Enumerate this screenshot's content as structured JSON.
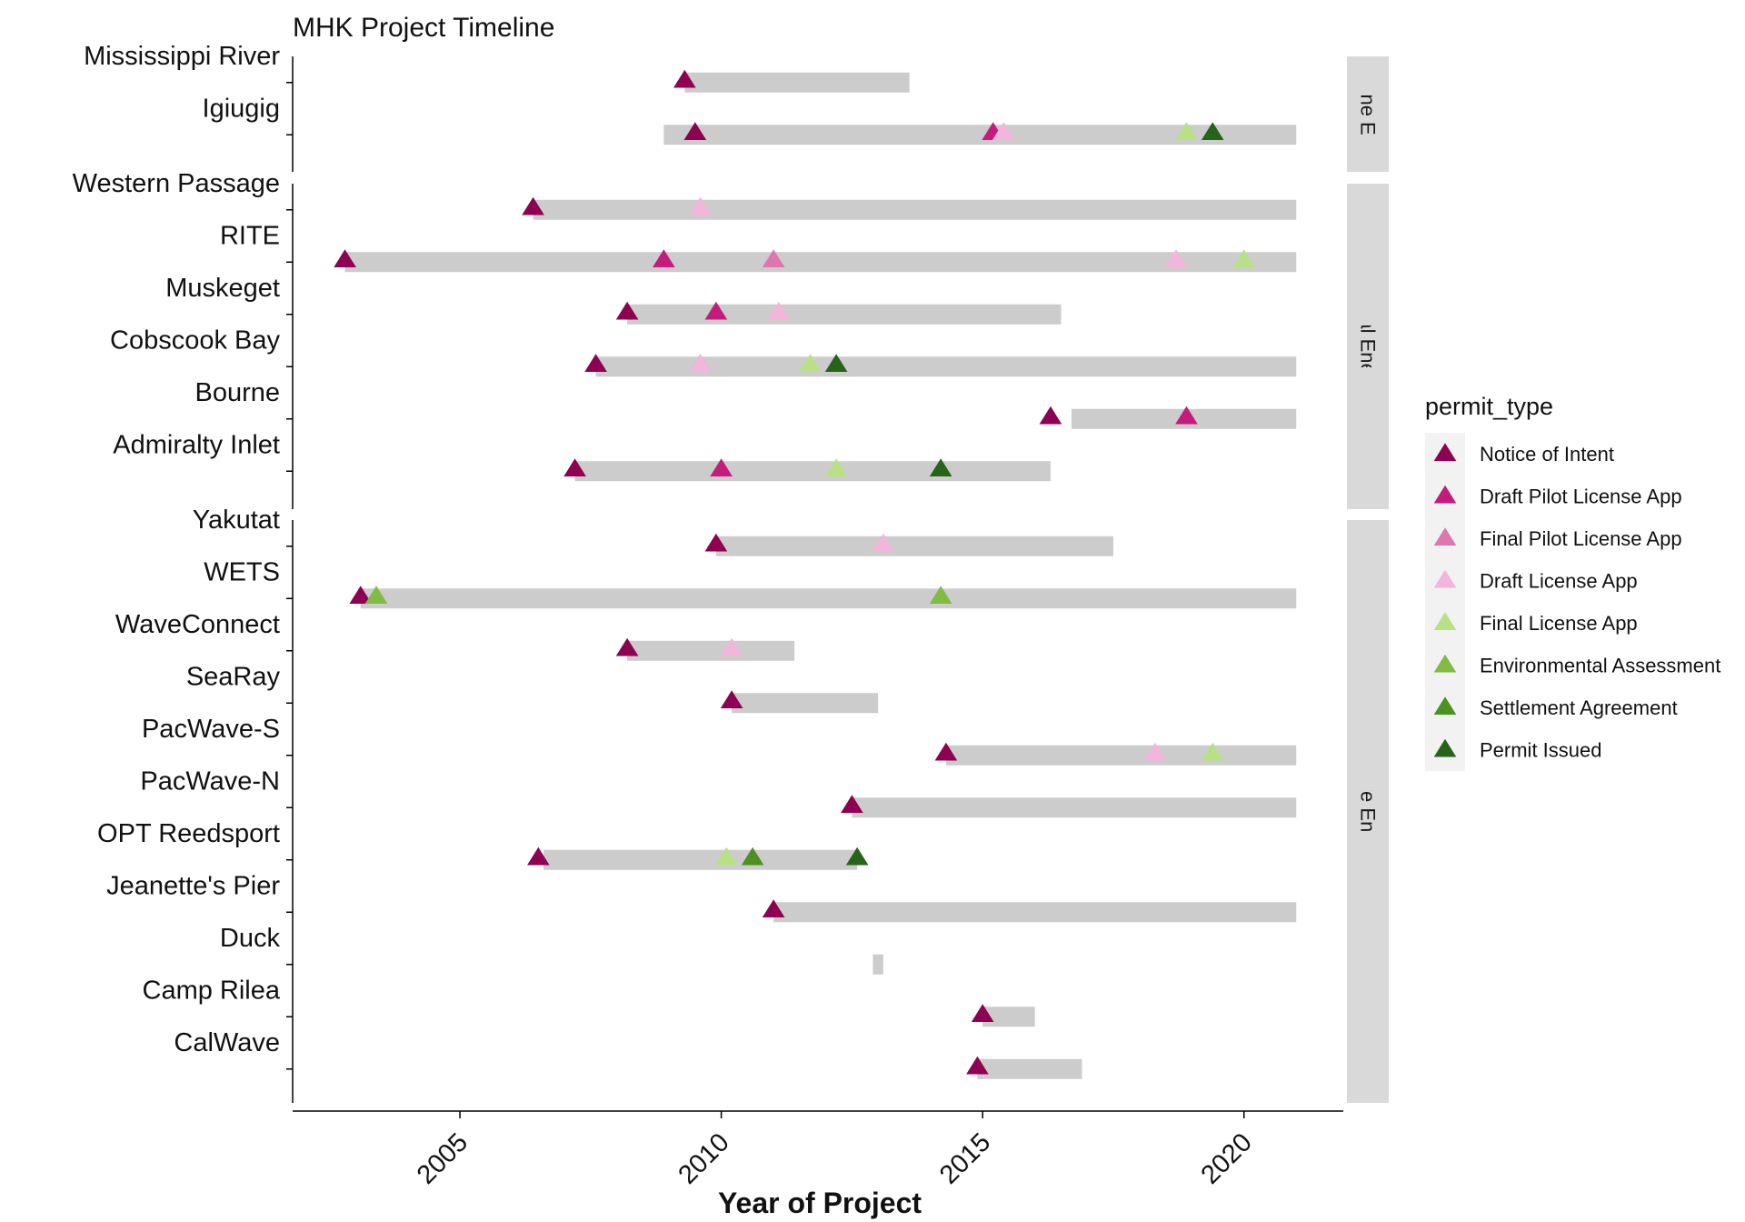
{
  "chart_data": {
    "type": "timeline",
    "title": "MHK Project Timeline",
    "xlabel": "Year of Project",
    "xlim": [
      2001.8,
      2021.9
    ],
    "xticks": [
      2005,
      2010,
      2015,
      2020
    ],
    "legend": {
      "title": "permit_type",
      "placement": "right",
      "entries": [
        {
          "name": "Notice of Intent",
          "color": "#8e0152"
        },
        {
          "name": "Draft Pilot License App",
          "color": "#c51b7d"
        },
        {
          "name": "Final Pilot License App",
          "color": "#de77ae"
        },
        {
          "name": "Draft License App",
          "color": "#f1b6da"
        },
        {
          "name": "Final License App",
          "color": "#b8e186"
        },
        {
          "name": "Environmental Assessment",
          "color": "#7fbc41"
        },
        {
          "name": "Settlement Agreement",
          "color": "#4d9221"
        },
        {
          "name": "Permit Issued",
          "color": "#276419"
        }
      ]
    },
    "bar_color": "#cccccc",
    "facets": [
      {
        "strip_label": "Riverine Energy",
        "projects": [
          {
            "name": "Mississippi River",
            "start": 2009.3,
            "end": 2013.6,
            "permits": [
              {
                "type": "Notice of Intent",
                "year": 2009.3
              }
            ]
          },
          {
            "name": "Igiugig",
            "start": 2008.9,
            "end": 2021.0,
            "permits": [
              {
                "type": "Notice of Intent",
                "year": 2009.5
              },
              {
                "type": "Draft Pilot License App",
                "year": 2015.2
              },
              {
                "type": "Draft License App",
                "year": 2015.4
              },
              {
                "type": "Final License App",
                "year": 2018.9
              },
              {
                "type": "Permit Issued",
                "year": 2019.4
              }
            ]
          }
        ]
      },
      {
        "strip_label": "Tidal Energy",
        "projects": [
          {
            "name": "Western Passage",
            "start": 2006.4,
            "end": 2021.0,
            "permits": [
              {
                "type": "Notice of Intent",
                "year": 2006.4
              },
              {
                "type": "Draft License App",
                "year": 2009.6
              }
            ]
          },
          {
            "name": "RITE",
            "start": 2002.8,
            "end": 2021.0,
            "permits": [
              {
                "type": "Notice of Intent",
                "year": 2002.8
              },
              {
                "type": "Draft Pilot License App",
                "year": 2008.9
              },
              {
                "type": "Final Pilot License App",
                "year": 2011.0
              },
              {
                "type": "Draft License App",
                "year": 2018.7
              },
              {
                "type": "Final License App",
                "year": 2020.0
              }
            ]
          },
          {
            "name": "Muskeget",
            "start": 2008.2,
            "end": 2016.5,
            "permits": [
              {
                "type": "Notice of Intent",
                "year": 2008.2
              },
              {
                "type": "Draft Pilot License App",
                "year": 2009.9
              },
              {
                "type": "Draft License App",
                "year": 2011.1
              }
            ]
          },
          {
            "name": "Cobscook Bay",
            "start": 2007.6,
            "end": 2021.0,
            "permits": [
              {
                "type": "Notice of Intent",
                "year": 2007.6
              },
              {
                "type": "Final Pilot License App",
                "year": 2009.6
              },
              {
                "type": "Draft License App",
                "year": 2009.6
              },
              {
                "type": "Final License App",
                "year": 2011.7
              },
              {
                "type": "Permit Issued",
                "year": 2012.2
              }
            ]
          },
          {
            "name": "Bourne",
            "start": 2016.7,
            "end": 2021.0,
            "permits": [
              {
                "type": "Notice of Intent",
                "year": 2016.3
              },
              {
                "type": "Draft Pilot License App",
                "year": 2018.9
              }
            ]
          },
          {
            "name": "Admiralty Inlet",
            "start": 2007.2,
            "end": 2016.3,
            "permits": [
              {
                "type": "Notice of Intent",
                "year": 2007.2
              },
              {
                "type": "Draft Pilot License App",
                "year": 2010.0
              },
              {
                "type": "Final License App",
                "year": 2012.2
              },
              {
                "type": "Permit Issued",
                "year": 2014.2
              }
            ]
          }
        ]
      },
      {
        "strip_label": "Wave Energy",
        "projects": [
          {
            "name": "Yakutat",
            "start": 2009.9,
            "end": 2017.5,
            "permits": [
              {
                "type": "Notice of Intent",
                "year": 2009.9
              },
              {
                "type": "Draft License App",
                "year": 2013.1
              }
            ]
          },
          {
            "name": "WETS",
            "start": 2003.1,
            "end": 2021.0,
            "permits": [
              {
                "type": "Notice of Intent",
                "year": 2003.1
              },
              {
                "type": "Environmental Assessment",
                "year": 2003.4
              },
              {
                "type": "Environmental Assessment",
                "year": 2014.2
              }
            ]
          },
          {
            "name": "WaveConnect",
            "start": 2008.2,
            "end": 2011.4,
            "permits": [
              {
                "type": "Notice of Intent",
                "year": 2008.2
              },
              {
                "type": "Draft License App",
                "year": 2010.2
              }
            ]
          },
          {
            "name": "SeaRay",
            "start": 2010.2,
            "end": 2013.0,
            "permits": [
              {
                "type": "Notice of Intent",
                "year": 2010.2
              }
            ]
          },
          {
            "name": "PacWave-S",
            "start": 2014.3,
            "end": 2021.0,
            "permits": [
              {
                "type": "Notice of Intent",
                "year": 2014.3
              },
              {
                "type": "Draft License App",
                "year": 2018.3
              },
              {
                "type": "Final License App",
                "year": 2019.4
              }
            ]
          },
          {
            "name": "PacWave-N",
            "start": 2012.5,
            "end": 2021.0,
            "permits": [
              {
                "type": "Notice of Intent",
                "year": 2012.5
              }
            ]
          },
          {
            "name": "OPT Reedsport",
            "start": 2006.6,
            "end": 2012.6,
            "permits": [
              {
                "type": "Notice of Intent",
                "year": 2006.5
              },
              {
                "type": "Final License App",
                "year": 2010.1
              },
              {
                "type": "Settlement Agreement",
                "year": 2010.6
              },
              {
                "type": "Permit Issued",
                "year": 2012.6
              }
            ]
          },
          {
            "name": "Jeanette's Pier",
            "start": 2011.0,
            "end": 2021.0,
            "permits": [
              {
                "type": "Notice of Intent",
                "year": 2011.0
              }
            ]
          },
          {
            "name": "Duck",
            "start": 2012.9,
            "end": 2013.1,
            "permits": []
          },
          {
            "name": "Camp Rilea",
            "start": 2015.0,
            "end": 2016.0,
            "permits": [
              {
                "type": "Notice of Intent",
                "year": 2015.0
              }
            ]
          },
          {
            "name": "CalWave",
            "start": 2014.9,
            "end": 2016.9,
            "permits": [
              {
                "type": "Notice of Intent",
                "year": 2014.9
              }
            ]
          }
        ]
      }
    ]
  }
}
